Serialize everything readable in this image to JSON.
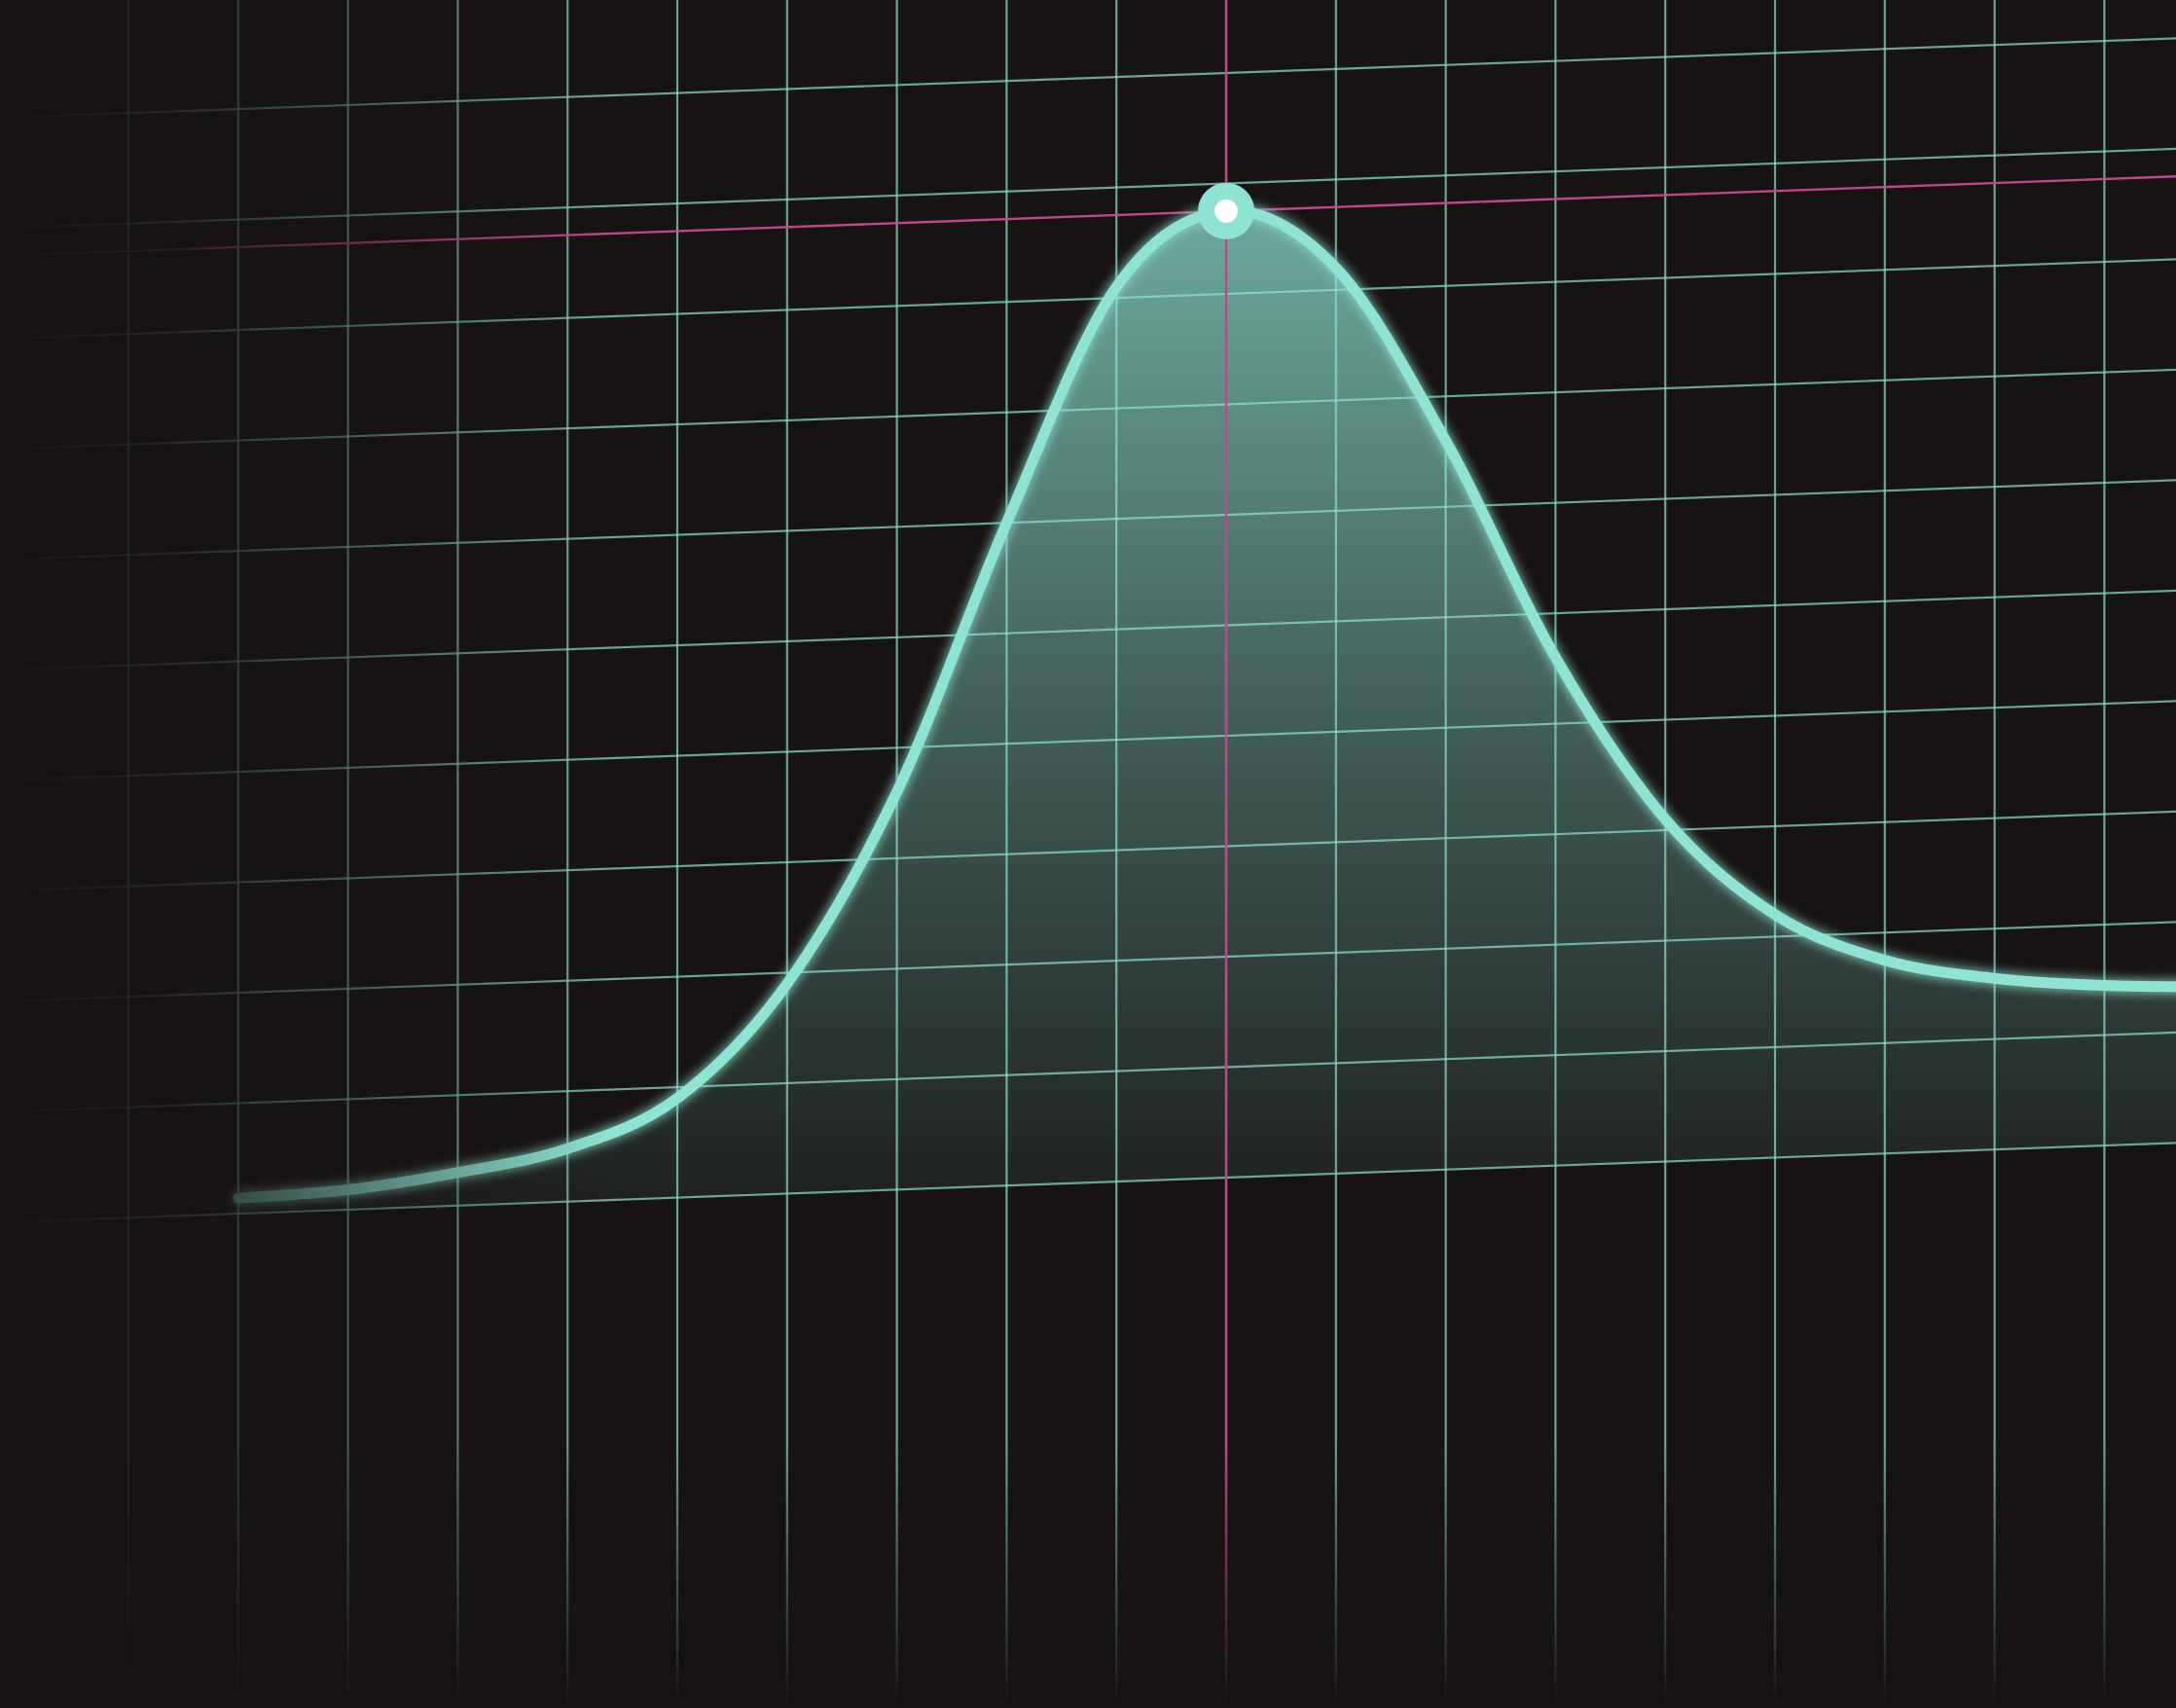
{
  "chart_data": {
    "type": "area",
    "grid": true,
    "x": [
      -9,
      -8,
      -7,
      -6,
      -5,
      -4,
      -3,
      -2,
      -1,
      0,
      1,
      2,
      3,
      4,
      5,
      6,
      7,
      8,
      9
    ],
    "series": [
      {
        "values": [
          0.14,
          0.18,
          0.3,
          0.48,
          0.9,
          1.9,
          3.6,
          6.0,
          8.1,
          8.75,
          8.2,
          6.6,
          4.6,
          3.1,
          2.2,
          1.75,
          1.55,
          1.45,
          1.4
        ]
      }
    ],
    "xlim": [
      -11.4,
      9.2
    ],
    "ylim": [
      -0.8,
      10.8
    ],
    "highlight": {
      "x": 0,
      "y": 8.75
    }
  },
  "colors": {
    "background": "#171313",
    "grid": "#84d6c6",
    "curve": "#8ee3d2",
    "highlight": "#c0458f",
    "marker": "#8ee3d2"
  }
}
